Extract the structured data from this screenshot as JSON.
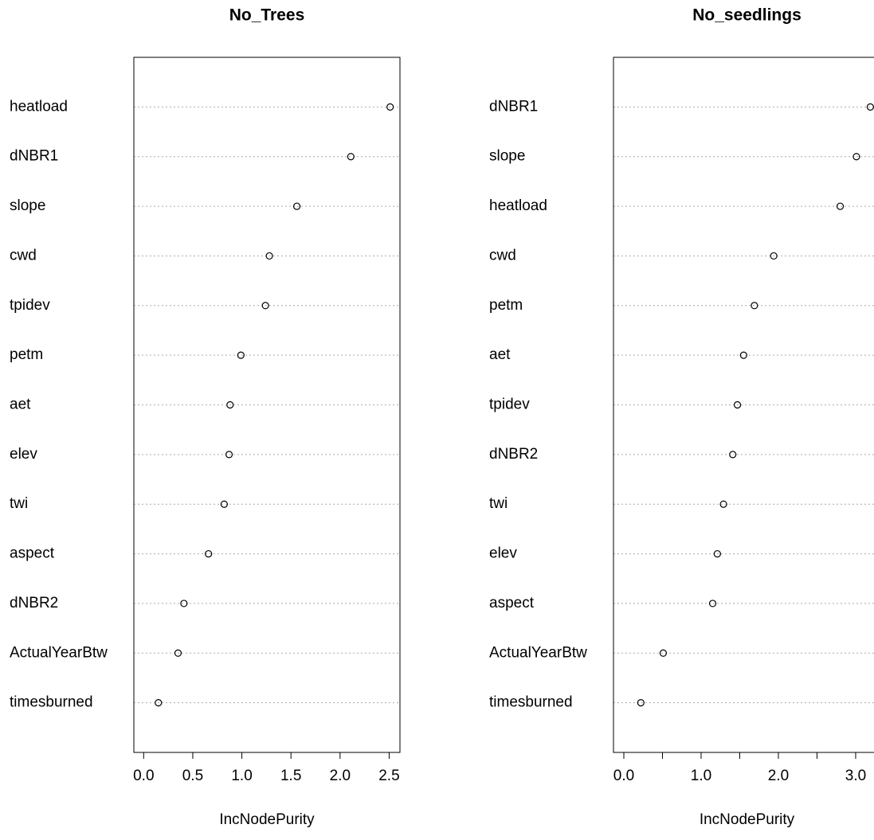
{
  "chart_data": [
    {
      "type": "dot",
      "title": "No_Trees",
      "x_label": "IncNodePurity",
      "categories": [
        "heatload",
        "dNBR1",
        "slope",
        "cwd",
        "tpidev",
        "petm",
        "aet",
        "elev",
        "twi",
        "aspect",
        "dNBR2",
        "ActualYearBtw",
        "timesburned"
      ],
      "values": [
        2.51,
        2.11,
        1.56,
        1.28,
        1.24,
        0.99,
        0.88,
        0.87,
        0.82,
        0.66,
        0.41,
        0.35,
        0.15
      ],
      "xlim": [
        -0.1,
        2.61
      ],
      "xticks": [
        {
          "value": 0,
          "label": "0.0"
        },
        0.5,
        {
          "value": 1,
          "label": "1.0"
        },
        1.5,
        {
          "value": 2,
          "label": "2.0"
        },
        2.5
      ],
      "grid": true,
      "color": "#000000"
    },
    {
      "type": "dot",
      "title": "No_seedlings",
      "x_label": "IncNodePurity",
      "categories": [
        "dNBR1",
        "slope",
        "heatload",
        "cwd",
        "petm",
        "aet",
        "tpidev",
        "dNBR2",
        "twi",
        "elev",
        "aspect",
        "ActualYearBtw",
        "timesburned"
      ],
      "values": [
        3.19,
        3.01,
        2.8,
        1.94,
        1.69,
        1.55,
        1.47,
        1.41,
        1.29,
        1.21,
        1.15,
        0.51,
        0.22
      ],
      "xlim": [
        -0.134,
        3.32
      ],
      "xticks": [
        {
          "value": 0,
          "label": "0.0"
        },
        {
          "value": 1,
          "label": "1.0"
        },
        {
          "value": 2,
          "label": "2.0"
        },
        {
          "value": 3,
          "label": "3.0"
        }
      ],
      "xminorticks": [
        0.5,
        1.5,
        2.5
      ],
      "grid": true,
      "color": "#000000"
    }
  ]
}
